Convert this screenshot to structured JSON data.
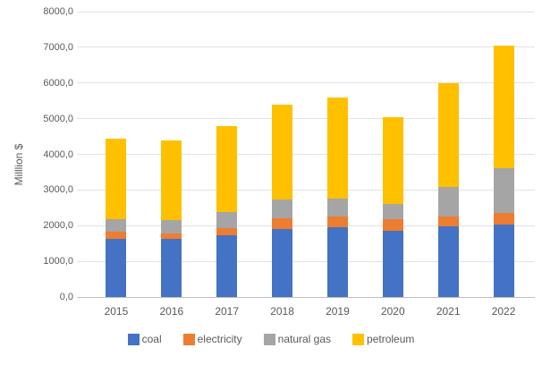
{
  "chart_data": {
    "type": "bar",
    "stacked": true,
    "title": "",
    "xlabel": "",
    "ylabel": "Milllion $",
    "categories": [
      "2015",
      "2016",
      "2017",
      "2018",
      "2019",
      "2020",
      "2021",
      "2022"
    ],
    "series": [
      {
        "name": "coal",
        "color": "#4472C4",
        "values": [
          1630,
          1640,
          1720,
          1900,
          1950,
          1850,
          1970,
          2020
        ]
      },
      {
        "name": "electricity",
        "color": "#ED7D31",
        "values": [
          190,
          130,
          220,
          310,
          310,
          330,
          290,
          330
        ]
      },
      {
        "name": "natural gas",
        "color": "#A5A5A5",
        "values": [
          350,
          380,
          440,
          530,
          500,
          440,
          830,
          1250
        ]
      },
      {
        "name": "petroleum",
        "color": "#FFC000",
        "values": [
          2280,
          2250,
          2420,
          2660,
          2840,
          2430,
          2910,
          3450
        ]
      }
    ],
    "totals": [
      4450,
      4400,
      4800,
      5400,
      5600,
      5050,
      6000,
      7050
    ],
    "ylim": [
      0,
      8000
    ],
    "ytick_step": 1000,
    "ytick_labels": [
      "0,0",
      "1000,0",
      "2000,0",
      "3000,0",
      "4000,0",
      "5000,0",
      "6000,0",
      "7000,0",
      "8000,0"
    ],
    "grid": true,
    "legend_position": "bottom",
    "colors": {
      "tick_text": "#595959",
      "gridline": "#e2e2e2",
      "axis_line": "#bfbfbf",
      "background": "#ffffff"
    }
  }
}
